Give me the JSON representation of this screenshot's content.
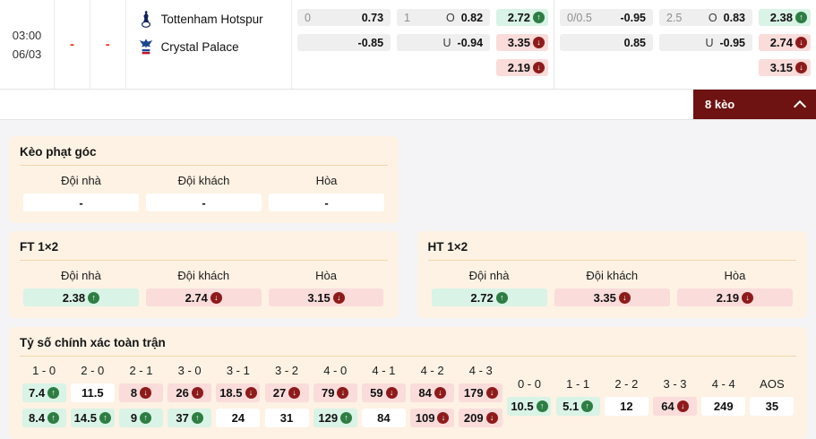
{
  "colors": {
    "accent_maroon": "#6e1212",
    "panel_bg": "#fdf2e4",
    "up_cell": "#d9f3e6",
    "up_icon": "#2e7d44",
    "down_cell": "#fadcdb",
    "down_icon": "#8e1b1b",
    "dash_red": "#e8401f"
  },
  "icons": {
    "collapse": "chevron-up",
    "trend_up": "arrow-up-circle",
    "trend_down": "arrow-down-circle",
    "home_logo": "tottenham-hotspur-crest",
    "away_logo": "crystal-palace-crest"
  },
  "match": {
    "time": "03:00",
    "date": "06/03",
    "score_home": "-",
    "score_away": "-",
    "home_team": "Tottenham Hotspur",
    "away_team": "Crystal Palace"
  },
  "odds_table": {
    "groups": [
      {
        "handicap": {
          "line": "0",
          "home_odds": "0.73",
          "away_odds": "-0.85"
        },
        "overunder": {
          "line": "1",
          "over_label": "O",
          "over_odds": "0.82",
          "under_label": "U",
          "under_odds": "-0.94"
        },
        "x12": [
          {
            "value": "2.72",
            "trend": "up"
          },
          {
            "value": "3.35",
            "trend": "down"
          },
          {
            "value": "2.19",
            "trend": "down"
          }
        ]
      },
      {
        "handicap": {
          "line": "0/0.5",
          "home_odds": "-0.95",
          "away_odds": "0.85"
        },
        "overunder": {
          "line": "2.5",
          "over_label": "O",
          "over_odds": "0.83",
          "under_label": "U",
          "under_odds": "-0.95"
        },
        "x12": [
          {
            "value": "2.38",
            "trend": "up"
          },
          {
            "value": "2.74",
            "trend": "down"
          },
          {
            "value": "3.15",
            "trend": "down"
          }
        ]
      }
    ]
  },
  "keo_bar": {
    "label": "8 kèo"
  },
  "corner_panel": {
    "title": "Kèo phạt góc",
    "labels": [
      "Đội nhà",
      "Đội khách",
      "Hòa"
    ],
    "values": [
      "-",
      "-",
      "-"
    ]
  },
  "ft_panel": {
    "title": "FT 1×2",
    "labels": [
      "Đội nhà",
      "Đội khách",
      "Hòa"
    ],
    "odds": [
      {
        "value": "2.38",
        "trend": "up"
      },
      {
        "value": "2.74",
        "trend": "down"
      },
      {
        "value": "3.15",
        "trend": "down"
      }
    ]
  },
  "ht_panel": {
    "title": "HT 1×2",
    "labels": [
      "Đội nhà",
      "Đội khách",
      "Hòa"
    ],
    "odds": [
      {
        "value": "2.72",
        "trend": "up"
      },
      {
        "value": "3.35",
        "trend": "down"
      },
      {
        "value": "2.19",
        "trend": "down"
      }
    ]
  },
  "correct_score": {
    "title": "Tỷ số chính xác toàn trận",
    "win_columns": [
      {
        "score": "1 - 0",
        "top": {
          "value": "7.4",
          "trend": "up"
        },
        "bottom": {
          "value": "8.4",
          "trend": "up"
        }
      },
      {
        "score": "2 - 0",
        "top": {
          "value": "11.5",
          "trend": "none"
        },
        "bottom": {
          "value": "14.5",
          "trend": "up"
        }
      },
      {
        "score": "2 - 1",
        "top": {
          "value": "8",
          "trend": "down"
        },
        "bottom": {
          "value": "9",
          "trend": "up"
        }
      },
      {
        "score": "3 - 0",
        "top": {
          "value": "26",
          "trend": "down"
        },
        "bottom": {
          "value": "37",
          "trend": "up"
        }
      },
      {
        "score": "3 - 1",
        "top": {
          "value": "18.5",
          "trend": "down"
        },
        "bottom": {
          "value": "24",
          "trend": "none"
        }
      },
      {
        "score": "3 - 2",
        "top": {
          "value": "27",
          "trend": "down"
        },
        "bottom": {
          "value": "31",
          "trend": "none"
        }
      },
      {
        "score": "4 - 0",
        "top": {
          "value": "79",
          "trend": "down"
        },
        "bottom": {
          "value": "129",
          "trend": "up"
        }
      },
      {
        "score": "4 - 1",
        "top": {
          "value": "59",
          "trend": "down"
        },
        "bottom": {
          "value": "84",
          "trend": "none"
        }
      },
      {
        "score": "4 - 2",
        "top": {
          "value": "84",
          "trend": "down"
        },
        "bottom": {
          "value": "109",
          "trend": "down"
        }
      },
      {
        "score": "4 - 3",
        "top": {
          "value": "179",
          "trend": "down"
        },
        "bottom": {
          "value": "209",
          "trend": "down"
        }
      }
    ],
    "draw_columns": [
      {
        "score": "0 - 0",
        "odd": {
          "value": "10.5",
          "trend": "up"
        }
      },
      {
        "score": "1 - 1",
        "odd": {
          "value": "5.1",
          "trend": "up"
        }
      },
      {
        "score": "2 - 2",
        "odd": {
          "value": "12",
          "trend": "none"
        }
      },
      {
        "score": "3 - 3",
        "odd": {
          "value": "64",
          "trend": "down"
        }
      },
      {
        "score": "4 - 4",
        "odd": {
          "value": "249",
          "trend": "none"
        }
      },
      {
        "score": "AOS",
        "odd": {
          "value": "35",
          "trend": "none"
        }
      }
    ]
  }
}
